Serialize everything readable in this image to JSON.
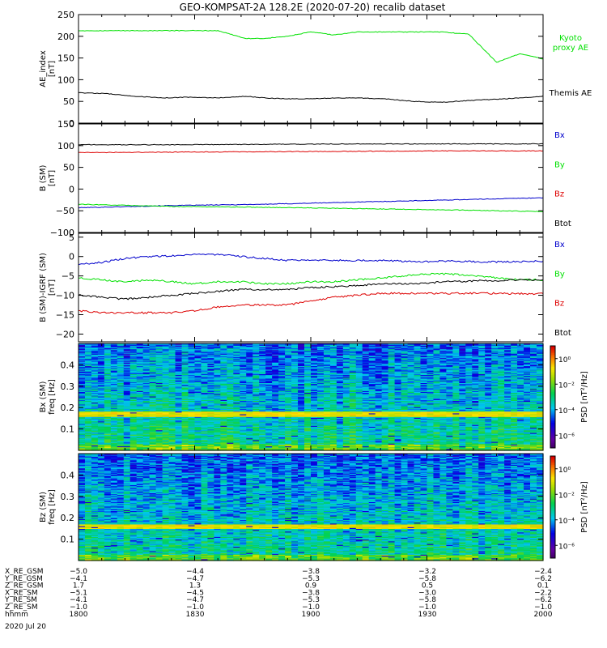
{
  "title": "GEO-KOMPSAT-2A 128.2E (2020-07-20) recalib dataset",
  "time_ticks": [
    "1800",
    "1830",
    "1900",
    "1930",
    "2000"
  ],
  "chart_data": [
    {
      "type": "line",
      "ylabel": [
        "AE_index",
        "[nT]"
      ],
      "ylim": [
        0,
        250
      ],
      "yticks": [
        0,
        50,
        100,
        150,
        200,
        250
      ],
      "ytick_labels": [
        "0",
        "50",
        "100",
        "150",
        "200",
        "250"
      ],
      "x": [
        0,
        6,
        12,
        18,
        24,
        30,
        36,
        40,
        45,
        50,
        55,
        60,
        66,
        72,
        78,
        84,
        90,
        95,
        100
      ],
      "series": [
        {
          "name": "Kyoto proxy AE",
          "label_lines": [
            "Kyoto",
            "proxy AE"
          ],
          "color": "#00e000",
          "values": [
            213,
            213,
            213,
            213,
            213,
            213,
            195,
            195,
            200,
            210,
            203,
            210,
            210,
            210,
            210,
            205,
            140,
            160,
            148
          ]
        },
        {
          "name": "Themis AE",
          "label_lines": [
            "Themis AE"
          ],
          "color": "#000000",
          "values": [
            70,
            68,
            62,
            58,
            60,
            58,
            62,
            58,
            56,
            56,
            58,
            58,
            56,
            50,
            48,
            52,
            55,
            58,
            62
          ]
        }
      ]
    },
    {
      "type": "line",
      "ylabel": [
        "B (SM)",
        "[nT]"
      ],
      "ylim": [
        -100,
        150
      ],
      "yticks": [
        -100,
        -50,
        0,
        50,
        100,
        150
      ],
      "ytick_labels": [
        "−100",
        "−50",
        "0",
        "50",
        "100",
        "150"
      ],
      "x": [
        0,
        20,
        40,
        60,
        80,
        100
      ],
      "series": [
        {
          "name": "Bx",
          "color": "#0000cc",
          "values": [
            -43,
            -38,
            -35,
            -30,
            -25,
            -20
          ]
        },
        {
          "name": "By",
          "color": "#00e000",
          "values": [
            -35,
            -40,
            -42,
            -45,
            -48,
            -52
          ]
        },
        {
          "name": "Bz",
          "color": "#dd0000",
          "values": [
            84,
            85,
            86,
            87,
            88,
            88
          ]
        },
        {
          "name": "Btot",
          "color": "#000000",
          "values": [
            102,
            102,
            103,
            104,
            104,
            104
          ]
        }
      ]
    },
    {
      "type": "line",
      "ylabel": [
        "B (SM)-IGRF (SM)",
        "[nT]"
      ],
      "ylim": [
        -22,
        6
      ],
      "yticks": [
        -20,
        -15,
        -10,
        -5,
        0,
        5
      ],
      "ytick_labels": [
        "−20",
        "−15",
        "−10",
        "−5",
        "0",
        "5"
      ],
      "x": [
        0,
        5,
        10,
        15,
        20,
        25,
        30,
        35,
        40,
        45,
        50,
        55,
        60,
        65,
        70,
        75,
        80,
        85,
        90,
        95,
        100
      ],
      "series": [
        {
          "name": "Bx",
          "color": "#0000cc",
          "values": [
            -2,
            -1.5,
            -0.5,
            0,
            0.2,
            0.6,
            0.5,
            0,
            -0.5,
            -1,
            -0.8,
            -1,
            -1,
            -1,
            -1.2,
            -1.3,
            -1.2,
            -1.3,
            -1.4,
            -1.3,
            -1.2
          ]
        },
        {
          "name": "By",
          "color": "#00e000",
          "values": [
            -5.5,
            -6,
            -6.5,
            -6,
            -6.5,
            -7,
            -6.5,
            -6.5,
            -7,
            -7,
            -6.5,
            -6.5,
            -6,
            -5.5,
            -5,
            -4.5,
            -4.5,
            -5,
            -5.5,
            -6,
            -6
          ]
        },
        {
          "name": "Bz",
          "color": "#dd0000",
          "values": [
            -14,
            -14.5,
            -14.5,
            -14.5,
            -14.5,
            -14,
            -13,
            -12.5,
            -12.5,
            -12.5,
            -11.5,
            -10.5,
            -10,
            -9.5,
            -9.5,
            -9.5,
            -9.5,
            -9.5,
            -9.5,
            -9.6,
            -9.6
          ]
        },
        {
          "name": "Btot",
          "color": "#000000",
          "values": [
            -10,
            -10.5,
            -11,
            -10.5,
            -10,
            -9.5,
            -9,
            -8.5,
            -8.5,
            -8.5,
            -8,
            -7.8,
            -7.5,
            -7,
            -7,
            -6.8,
            -6.5,
            -6.3,
            -6.2,
            -6,
            -6
          ]
        }
      ]
    },
    {
      "type": "heatmap",
      "ylabel": [
        "Bx (SM)",
        "freq [Hz]"
      ],
      "ylim": [
        0,
        0.5
      ],
      "yticks": [
        0.1,
        0.2,
        0.3,
        0.4
      ],
      "ytick_labels": [
        "0.1",
        "0.2",
        "0.3",
        "0.4"
      ],
      "colorbar_label": "PSD [nT²/Hz]",
      "colorbar_ticks": [
        "10⁰",
        "10⁻²",
        "10⁻⁴",
        "10⁻⁶"
      ],
      "colorbar_tick_exponents": [
        0,
        -2,
        -4,
        -6
      ],
      "colorbar_range_exponent": [
        -7,
        1
      ],
      "n_time": 12,
      "n_freq": 40,
      "seed": 7,
      "band_freq_hz": 0.17
    },
    {
      "type": "heatmap",
      "ylabel": [
        "Bz (SM)",
        "freq [Hz]"
      ],
      "ylim": [
        0,
        0.5
      ],
      "yticks": [
        0.1,
        0.2,
        0.3,
        0.4
      ],
      "ytick_labels": [
        "0.1",
        "0.2",
        "0.3",
        "0.4"
      ],
      "colorbar_label": "PSD [nT²/Hz]",
      "colorbar_ticks": [
        "10⁰",
        "10⁻²",
        "10⁻⁴",
        "10⁻⁶"
      ],
      "colorbar_tick_exponents": [
        0,
        -2,
        -4,
        -6
      ],
      "colorbar_range_exponent": [
        -7,
        1
      ],
      "n_time": 12,
      "n_freq": 40,
      "seed": 19,
      "band_freq_hz": 0.16
    }
  ],
  "ephemeris": {
    "rows": [
      {
        "label": "X_RE_GSM",
        "values": [
          "−5.0",
          "−4.4",
          "−3.8",
          "−3.2",
          "−2.4"
        ]
      },
      {
        "label": "Y_RE_GSM",
        "values": [
          "−4.1",
          "−4.7",
          "−5.3",
          "−5.8",
          "−6.2"
        ]
      },
      {
        "label": "Z_RE_GSM",
        "values": [
          "1.7",
          "1.3",
          "0.9",
          "0.5",
          "0.1"
        ]
      },
      {
        "label": "X_RE_SM",
        "values": [
          "−5.1",
          "−4.5",
          "−3.8",
          "−3.0",
          "−2.2"
        ]
      },
      {
        "label": "Y_RE_SM",
        "values": [
          "−4.1",
          "−4.7",
          "−5.3",
          "−5.8",
          "−6.2"
        ]
      },
      {
        "label": "Z_RE_SM",
        "values": [
          "−1.0",
          "−1.0",
          "−1.0",
          "−1.0",
          "−1.0"
        ]
      },
      {
        "label": "hhmm",
        "values": [
          "1800",
          "1830",
          "1900",
          "1930",
          "2000"
        ]
      }
    ],
    "date": "2020 Jul 20"
  }
}
